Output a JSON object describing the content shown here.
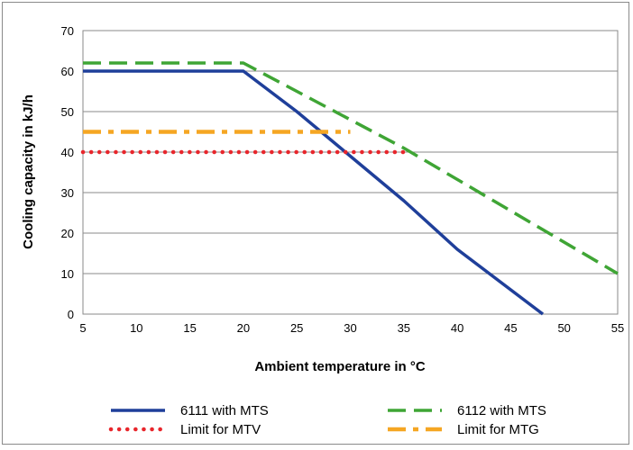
{
  "chart_data": {
    "type": "line",
    "xlabel": "Ambient temperature in °C",
    "ylabel": "Cooling capacity in kJ/h",
    "xlim": [
      5,
      55
    ],
    "ylim": [
      0,
      70
    ],
    "x_ticks": [
      5,
      10,
      15,
      20,
      25,
      30,
      35,
      40,
      45,
      50,
      55
    ],
    "y_ticks": [
      0,
      10,
      20,
      30,
      40,
      50,
      60,
      70
    ],
    "grid": "horizontal",
    "legend_position": "bottom",
    "series": [
      {
        "name": "6111 with MTS",
        "color": "#1f3f9a",
        "style": "solid",
        "points": [
          [
            5,
            60
          ],
          [
            20,
            60
          ],
          [
            25,
            50
          ],
          [
            30,
            39
          ],
          [
            35,
            28
          ],
          [
            40,
            16
          ],
          [
            48,
            0
          ]
        ]
      },
      {
        "name": "6112 with MTS",
        "color": "#3fa535",
        "style": "dashed",
        "points": [
          [
            5,
            62
          ],
          [
            20,
            62
          ],
          [
            35,
            41
          ],
          [
            55,
            10
          ]
        ]
      },
      {
        "name": "Limit for MTV",
        "color": "#e8262c",
        "style": "dotted",
        "points": [
          [
            5,
            40
          ],
          [
            35,
            40
          ]
        ]
      },
      {
        "name": "Limit for MTG",
        "color": "#f5a623",
        "style": "dashdot",
        "points": [
          [
            5,
            45
          ],
          [
            30,
            45
          ]
        ]
      }
    ]
  }
}
